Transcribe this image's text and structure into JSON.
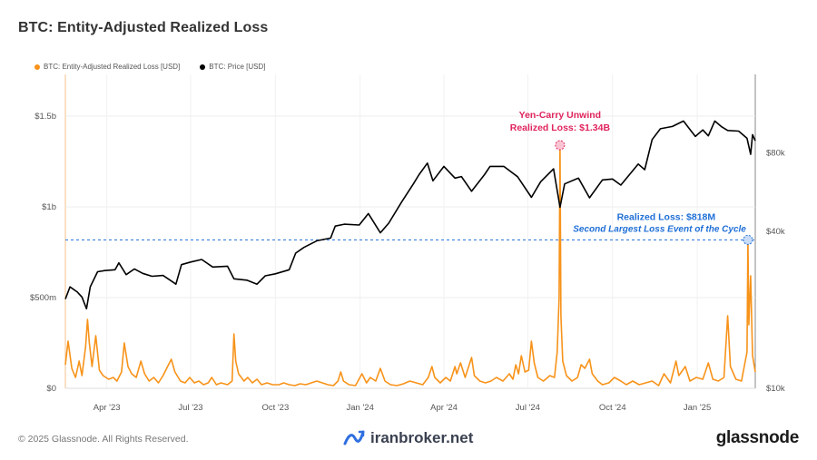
{
  "header": {
    "title": "BTC: Entity-Adjusted Realized Loss"
  },
  "footer": {
    "copyright": "© 2025 Glassnode. All Rights Reserved.",
    "watermark": "iranbroker.net",
    "brand": "glassnode"
  },
  "colors": {
    "loss": "#f7931a",
    "price": "#000000",
    "annotation_red": "#e0245e",
    "annotation_blue": "#1f6fd6",
    "grid": "#e8e8e8"
  },
  "chart_data": {
    "type": "line",
    "title": "BTC: Entity-Adjusted Realized Loss",
    "legend_placement": "top-left",
    "grid": true,
    "x_range": [
      "2023-02-15",
      "2025-03-05"
    ],
    "x_ticks": [
      {
        "date": "2023-04-01",
        "label": "Apr '23"
      },
      {
        "date": "2023-07-01",
        "label": "Jul '23"
      },
      {
        "date": "2023-10-01",
        "label": "Oct '23"
      },
      {
        "date": "2024-01-01",
        "label": "Jan '24"
      },
      {
        "date": "2024-04-01",
        "label": "Apr '24"
      },
      {
        "date": "2024-07-01",
        "label": "Jul '24"
      },
      {
        "date": "2024-10-01",
        "label": "Oct '24"
      },
      {
        "date": "2025-01-01",
        "label": "Jan '25"
      }
    ],
    "y_left": {
      "min": 0,
      "max": 1500000000,
      "ticks": [
        {
          "value": 0,
          "label": "$0"
        },
        {
          "value": 500000000,
          "label": "$500m"
        },
        {
          "value": 1000000000,
          "label": "$1b"
        },
        {
          "value": 1500000000,
          "label": "$1.5b"
        }
      ]
    },
    "y_right": {
      "scale": "log",
      "min": 10000,
      "max": 160000,
      "ticks": [
        {
          "value": 10000,
          "label": "$10k"
        },
        {
          "value": 40000,
          "label": "$40k"
        },
        {
          "value": 80000,
          "label": "$80k"
        }
      ]
    },
    "series": [
      {
        "name": "BTC: Entity-Adjusted Realized Loss [USD]",
        "axis": "left",
        "color": "#f7931a",
        "points": [
          [
            "2023-02-15",
            130000000
          ],
          [
            "2023-02-18",
            260000000
          ],
          [
            "2023-02-22",
            110000000
          ],
          [
            "2023-02-26",
            60000000
          ],
          [
            "2023-03-02",
            150000000
          ],
          [
            "2023-03-05",
            70000000
          ],
          [
            "2023-03-09",
            230000000
          ],
          [
            "2023-03-11",
            380000000
          ],
          [
            "2023-03-13",
            250000000
          ],
          [
            "2023-03-16",
            120000000
          ],
          [
            "2023-03-20",
            290000000
          ],
          [
            "2023-03-24",
            100000000
          ],
          [
            "2023-03-28",
            70000000
          ],
          [
            "2023-04-03",
            50000000
          ],
          [
            "2023-04-08",
            60000000
          ],
          [
            "2023-04-12",
            40000000
          ],
          [
            "2023-04-17",
            90000000
          ],
          [
            "2023-04-20",
            250000000
          ],
          [
            "2023-04-24",
            120000000
          ],
          [
            "2023-04-28",
            80000000
          ],
          [
            "2023-05-03",
            60000000
          ],
          [
            "2023-05-08",
            150000000
          ],
          [
            "2023-05-12",
            80000000
          ],
          [
            "2023-05-17",
            40000000
          ],
          [
            "2023-05-22",
            60000000
          ],
          [
            "2023-05-27",
            30000000
          ],
          [
            "2023-06-01",
            70000000
          ],
          [
            "2023-06-05",
            110000000
          ],
          [
            "2023-06-10",
            160000000
          ],
          [
            "2023-06-14",
            90000000
          ],
          [
            "2023-06-20",
            40000000
          ],
          [
            "2023-06-25",
            30000000
          ],
          [
            "2023-06-30",
            60000000
          ],
          [
            "2023-07-05",
            30000000
          ],
          [
            "2023-07-10",
            40000000
          ],
          [
            "2023-07-15",
            20000000
          ],
          [
            "2023-07-20",
            30000000
          ],
          [
            "2023-07-24",
            60000000
          ],
          [
            "2023-07-29",
            20000000
          ],
          [
            "2023-08-03",
            30000000
          ],
          [
            "2023-08-10",
            20000000
          ],
          [
            "2023-08-15",
            40000000
          ],
          [
            "2023-08-17",
            300000000
          ],
          [
            "2023-08-19",
            150000000
          ],
          [
            "2023-08-22",
            80000000
          ],
          [
            "2023-08-28",
            40000000
          ],
          [
            "2023-09-01",
            60000000
          ],
          [
            "2023-09-06",
            30000000
          ],
          [
            "2023-09-11",
            50000000
          ],
          [
            "2023-09-16",
            20000000
          ],
          [
            "2023-09-22",
            30000000
          ],
          [
            "2023-09-28",
            20000000
          ],
          [
            "2023-10-05",
            20000000
          ],
          [
            "2023-10-10",
            30000000
          ],
          [
            "2023-10-16",
            20000000
          ],
          [
            "2023-10-22",
            15000000
          ],
          [
            "2023-10-28",
            25000000
          ],
          [
            "2023-11-03",
            20000000
          ],
          [
            "2023-11-09",
            30000000
          ],
          [
            "2023-11-15",
            40000000
          ],
          [
            "2023-11-21",
            30000000
          ],
          [
            "2023-11-27",
            20000000
          ],
          [
            "2023-12-03",
            15000000
          ],
          [
            "2023-12-08",
            40000000
          ],
          [
            "2023-12-11",
            90000000
          ],
          [
            "2023-12-14",
            40000000
          ],
          [
            "2023-12-20",
            20000000
          ],
          [
            "2023-12-27",
            15000000
          ],
          [
            "2024-01-03",
            80000000
          ],
          [
            "2024-01-08",
            30000000
          ],
          [
            "2024-01-12",
            60000000
          ],
          [
            "2024-01-18",
            40000000
          ],
          [
            "2024-01-23",
            110000000
          ],
          [
            "2024-01-28",
            40000000
          ],
          [
            "2024-02-03",
            20000000
          ],
          [
            "2024-02-10",
            15000000
          ],
          [
            "2024-02-17",
            25000000
          ],
          [
            "2024-02-24",
            40000000
          ],
          [
            "2024-03-02",
            30000000
          ],
          [
            "2024-03-09",
            20000000
          ],
          [
            "2024-03-15",
            60000000
          ],
          [
            "2024-03-19",
            120000000
          ],
          [
            "2024-03-22",
            60000000
          ],
          [
            "2024-03-28",
            30000000
          ],
          [
            "2024-04-03",
            60000000
          ],
          [
            "2024-04-08",
            40000000
          ],
          [
            "2024-04-13",
            120000000
          ],
          [
            "2024-04-15",
            80000000
          ],
          [
            "2024-04-19",
            140000000
          ],
          [
            "2024-04-24",
            60000000
          ],
          [
            "2024-05-01",
            170000000
          ],
          [
            "2024-05-04",
            70000000
          ],
          [
            "2024-05-10",
            40000000
          ],
          [
            "2024-05-16",
            30000000
          ],
          [
            "2024-05-22",
            40000000
          ],
          [
            "2024-05-28",
            60000000
          ],
          [
            "2024-06-04",
            40000000
          ],
          [
            "2024-06-11",
            80000000
          ],
          [
            "2024-06-15",
            50000000
          ],
          [
            "2024-06-18",
            130000000
          ],
          [
            "2024-06-21",
            80000000
          ],
          [
            "2024-06-24",
            180000000
          ],
          [
            "2024-06-28",
            90000000
          ],
          [
            "2024-07-02",
            100000000
          ],
          [
            "2024-07-05",
            260000000
          ],
          [
            "2024-07-08",
            140000000
          ],
          [
            "2024-07-12",
            60000000
          ],
          [
            "2024-07-18",
            40000000
          ],
          [
            "2024-07-25",
            70000000
          ],
          [
            "2024-07-30",
            60000000
          ],
          [
            "2024-08-02",
            200000000
          ],
          [
            "2024-08-04",
            500000000
          ],
          [
            "2024-08-05",
            1340000000
          ],
          [
            "2024-08-06",
            400000000
          ],
          [
            "2024-08-08",
            150000000
          ],
          [
            "2024-08-12",
            70000000
          ],
          [
            "2024-08-18",
            40000000
          ],
          [
            "2024-08-24",
            60000000
          ],
          [
            "2024-08-28",
            130000000
          ],
          [
            "2024-09-01",
            110000000
          ],
          [
            "2024-09-06",
            160000000
          ],
          [
            "2024-09-09",
            80000000
          ],
          [
            "2024-09-15",
            40000000
          ],
          [
            "2024-09-20",
            20000000
          ],
          [
            "2024-09-27",
            30000000
          ],
          [
            "2024-10-03",
            60000000
          ],
          [
            "2024-10-10",
            40000000
          ],
          [
            "2024-10-16",
            20000000
          ],
          [
            "2024-10-23",
            40000000
          ],
          [
            "2024-10-30",
            20000000
          ],
          [
            "2024-11-06",
            30000000
          ],
          [
            "2024-11-13",
            40000000
          ],
          [
            "2024-11-20",
            15000000
          ],
          [
            "2024-11-26",
            80000000
          ],
          [
            "2024-12-03",
            30000000
          ],
          [
            "2024-12-09",
            150000000
          ],
          [
            "2024-12-12",
            70000000
          ],
          [
            "2024-12-19",
            120000000
          ],
          [
            "2024-12-24",
            40000000
          ],
          [
            "2024-12-31",
            60000000
          ],
          [
            "2025-01-07",
            50000000
          ],
          [
            "2025-01-13",
            140000000
          ],
          [
            "2025-01-18",
            50000000
          ],
          [
            "2025-01-24",
            40000000
          ],
          [
            "2025-01-30",
            60000000
          ],
          [
            "2025-02-03",
            400000000
          ],
          [
            "2025-02-06",
            120000000
          ],
          [
            "2025-02-12",
            50000000
          ],
          [
            "2025-02-18",
            40000000
          ],
          [
            "2025-02-24",
            200000000
          ],
          [
            "2025-02-25",
            818000000
          ],
          [
            "2025-02-26",
            350000000
          ],
          [
            "2025-02-28",
            620000000
          ],
          [
            "2025-03-02",
            180000000
          ],
          [
            "2025-03-05",
            90000000
          ]
        ]
      },
      {
        "name": "BTC: Price [USD]",
        "axis": "right",
        "color": "#000000",
        "points": [
          [
            "2023-02-15",
            22000
          ],
          [
            "2023-02-20",
            24500
          ],
          [
            "2023-02-28",
            23400
          ],
          [
            "2023-03-05",
            22400
          ],
          [
            "2023-03-10",
            20200
          ],
          [
            "2023-03-14",
            24500
          ],
          [
            "2023-03-22",
            28000
          ],
          [
            "2023-03-30",
            28300
          ],
          [
            "2023-04-10",
            28500
          ],
          [
            "2023-04-14",
            30300
          ],
          [
            "2023-04-22",
            27300
          ],
          [
            "2023-05-01",
            28700
          ],
          [
            "2023-05-10",
            27600
          ],
          [
            "2023-05-20",
            26900
          ],
          [
            "2023-06-01",
            27100
          ],
          [
            "2023-06-10",
            25800
          ],
          [
            "2023-06-15",
            25100
          ],
          [
            "2023-06-21",
            29800
          ],
          [
            "2023-07-01",
            30500
          ],
          [
            "2023-07-13",
            31200
          ],
          [
            "2023-07-25",
            29200
          ],
          [
            "2023-08-10",
            29400
          ],
          [
            "2023-08-17",
            26300
          ],
          [
            "2023-08-31",
            26000
          ],
          [
            "2023-09-11",
            25100
          ],
          [
            "2023-09-20",
            27000
          ],
          [
            "2023-10-01",
            27500
          ],
          [
            "2023-10-16",
            28500
          ],
          [
            "2023-10-23",
            33000
          ],
          [
            "2023-11-01",
            34700
          ],
          [
            "2023-11-15",
            36800
          ],
          [
            "2023-11-30",
            37700
          ],
          [
            "2023-12-05",
            41900
          ],
          [
            "2023-12-15",
            42600
          ],
          [
            "2023-12-31",
            42300
          ],
          [
            "2024-01-10",
            46800
          ],
          [
            "2024-01-23",
            39500
          ],
          [
            "2024-02-01",
            43000
          ],
          [
            "2024-02-15",
            51800
          ],
          [
            "2024-02-28",
            61000
          ],
          [
            "2024-03-05",
            66000
          ],
          [
            "2024-03-14",
            73100
          ],
          [
            "2024-03-20",
            62500
          ],
          [
            "2024-04-01",
            71000
          ],
          [
            "2024-04-13",
            64000
          ],
          [
            "2024-04-20",
            64900
          ],
          [
            "2024-05-01",
            57000
          ],
          [
            "2024-05-15",
            66000
          ],
          [
            "2024-05-21",
            71000
          ],
          [
            "2024-06-05",
            71000
          ],
          [
            "2024-06-20",
            64800
          ],
          [
            "2024-07-05",
            54000
          ],
          [
            "2024-07-15",
            62000
          ],
          [
            "2024-07-29",
            69500
          ],
          [
            "2024-08-05",
            49500
          ],
          [
            "2024-08-10",
            60800
          ],
          [
            "2024-08-25",
            64000
          ],
          [
            "2024-09-06",
            53800
          ],
          [
            "2024-09-20",
            63000
          ],
          [
            "2024-10-01",
            63500
          ],
          [
            "2024-10-10",
            60200
          ],
          [
            "2024-10-29",
            72500
          ],
          [
            "2024-11-05",
            69000
          ],
          [
            "2024-11-13",
            90000
          ],
          [
            "2024-11-22",
            99000
          ],
          [
            "2024-12-05",
            101000
          ],
          [
            "2024-12-17",
            106000
          ],
          [
            "2024-12-30",
            92500
          ],
          [
            "2025-01-07",
            98000
          ],
          [
            "2025-01-13",
            93000
          ],
          [
            "2025-01-20",
            106000
          ],
          [
            "2025-01-27",
            101000
          ],
          [
            "2025-02-03",
            97500
          ],
          [
            "2025-02-15",
            97000
          ],
          [
            "2025-02-24",
            91000
          ],
          [
            "2025-02-28",
            79000
          ],
          [
            "2025-03-02",
            94000
          ],
          [
            "2025-03-05",
            89000
          ]
        ]
      }
    ],
    "reference_line": {
      "value": 818000000,
      "axis": "left",
      "style": "dashed",
      "color": "#1f6fd6"
    },
    "annotations": [
      {
        "lines": [
          "Yen-Carry Unwind",
          "Realized Loss: $1.34B"
        ],
        "date": "2024-08-05",
        "value": 1340000000,
        "color": "#e0245e"
      },
      {
        "lines": [
          "Realized Loss: $818M",
          "Second Largest Loss Event of the Cycle"
        ],
        "date": "2025-02-25",
        "value": 818000000,
        "color": "#1f6fd6"
      }
    ]
  }
}
